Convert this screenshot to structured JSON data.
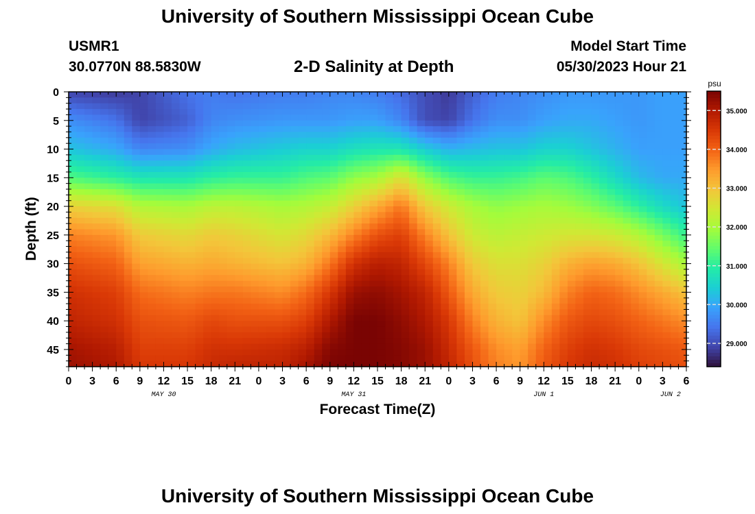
{
  "header": {
    "title": "University of Southern Mississippi Ocean Cube",
    "station": "USMR1",
    "coords": "30.0770N  88.5830W",
    "plot_title": "2-D Salinity at Depth",
    "model_start_label": "Model Start Time",
    "model_start_value": "05/30/2023 Hour 21"
  },
  "footer": {
    "title": "University of Southern Mississippi Ocean Cube"
  },
  "chart_data": {
    "type": "heatmap",
    "title": "2-D Salinity at Depth",
    "xlabel": "Forecast Time(Z)",
    "ylabel": "Depth (ft)",
    "x_hours_range": [
      0,
      78
    ],
    "x_ticks": [
      "0",
      "3",
      "6",
      "9",
      "12",
      "15",
      "18",
      "21",
      "0",
      "3",
      "6",
      "9",
      "12",
      "15",
      "18",
      "21",
      "0",
      "3",
      "6",
      "9",
      "12",
      "15",
      "18",
      "21",
      "0",
      "3",
      "6"
    ],
    "date_labels": [
      {
        "label": "MAY 30",
        "hour": 12
      },
      {
        "label": "MAY 31",
        "hour": 36
      },
      {
        "label": "JUN 1",
        "hour": 60
      },
      {
        "label": "JUN 2",
        "hour": 76
      }
    ],
    "ylim": [
      0,
      48
    ],
    "y_ticks": [
      0,
      5,
      10,
      15,
      20,
      25,
      30,
      35,
      40,
      45
    ],
    "colorbar": {
      "unit": "psu",
      "range": [
        28.4,
        35.5
      ],
      "ticks": [
        "29.000",
        "30.000",
        "31.000",
        "32.000",
        "33.000",
        "34.000",
        "35.000"
      ]
    },
    "colormap": [
      "#30123b",
      "#4145ab",
      "#4675ed",
      "#39a2fc",
      "#1bcfd4",
      "#24eca6",
      "#61fc6c",
      "#a4fc3b",
      "#d1e834",
      "#f3c63a",
      "#fe9b2d",
      "#f36315",
      "#d93806",
      "#b11901",
      "#7a0403"
    ],
    "depth_profile_hours": [
      0,
      6,
      9,
      15,
      18,
      21,
      27,
      30,
      33,
      36,
      39,
      42,
      45,
      48,
      51,
      54,
      57,
      60,
      63,
      66,
      69,
      72,
      75,
      78
    ],
    "salinity_profiles_psu": {
      "depths_ft": [
        0,
        5,
        10,
        15,
        20,
        25,
        30,
        35,
        40,
        45,
        48
      ],
      "values": [
        [
          28.9,
          29.7,
          30.3,
          31.3,
          32.8,
          33.7,
          34.2,
          34.6,
          34.8,
          35.1,
          35.2
        ],
        [
          28.8,
          29.4,
          30.0,
          31.0,
          32.6,
          33.5,
          34.0,
          34.4,
          34.6,
          34.9,
          35.0
        ],
        [
          28.9,
          28.9,
          29.6,
          30.8,
          32.1,
          32.9,
          33.4,
          33.9,
          34.2,
          34.4,
          34.5
        ],
        [
          29.4,
          29.2,
          29.7,
          30.8,
          32.0,
          32.7,
          33.2,
          33.7,
          34.1,
          34.4,
          34.5
        ],
        [
          29.5,
          29.6,
          30.0,
          31.0,
          32.2,
          32.9,
          33.3,
          33.8,
          34.3,
          34.6,
          34.7
        ],
        [
          29.4,
          29.7,
          30.2,
          31.1,
          32.2,
          32.8,
          33.2,
          33.8,
          34.2,
          34.6,
          34.8
        ],
        [
          29.5,
          29.8,
          30.4,
          31.1,
          32.0,
          32.5,
          33.0,
          33.6,
          34.2,
          34.7,
          34.8
        ],
        [
          29.5,
          29.8,
          30.5,
          31.3,
          32.1,
          32.7,
          33.2,
          33.9,
          34.4,
          34.9,
          35.1
        ],
        [
          29.6,
          29.8,
          30.5,
          31.4,
          32.3,
          33.1,
          33.8,
          34.5,
          35.0,
          35.4,
          35.5
        ],
        [
          29.6,
          29.9,
          30.7,
          31.8,
          32.8,
          33.7,
          34.6,
          35.2,
          35.5,
          35.5,
          35.5
        ],
        [
          29.5,
          29.9,
          30.8,
          32.0,
          33.3,
          34.2,
          34.9,
          35.3,
          35.5,
          35.5,
          35.5
        ],
        [
          29.3,
          29.6,
          30.8,
          32.6,
          33.8,
          34.4,
          34.8,
          35.1,
          35.3,
          35.4,
          35.4
        ],
        [
          29.0,
          29.0,
          30.4,
          31.8,
          32.9,
          33.7,
          34.3,
          34.8,
          35.0,
          35.2,
          35.2
        ],
        [
          28.8,
          28.9,
          30.1,
          31.3,
          32.4,
          33.0,
          33.7,
          34.1,
          34.5,
          34.7,
          34.8
        ],
        [
          29.2,
          29.4,
          30.2,
          31.1,
          32.0,
          32.4,
          32.9,
          33.3,
          33.7,
          34.1,
          34.2
        ],
        [
          29.5,
          29.7,
          30.3,
          31.1,
          31.8,
          32.2,
          32.6,
          32.9,
          33.2,
          33.6,
          33.7
        ],
        [
          29.6,
          29.7,
          30.3,
          31.2,
          31.9,
          32.3,
          32.6,
          32.8,
          33.0,
          33.4,
          33.5
        ],
        [
          29.7,
          29.9,
          30.5,
          31.4,
          32.0,
          32.4,
          32.8,
          33.1,
          33.6,
          34.0,
          34.1
        ],
        [
          29.8,
          30.0,
          30.5,
          31.3,
          31.9,
          32.5,
          33.2,
          33.7,
          34.1,
          34.4,
          34.5
        ],
        [
          29.8,
          30.0,
          30.3,
          31.0,
          31.7,
          32.5,
          33.4,
          34.0,
          34.3,
          34.6,
          34.7
        ],
        [
          29.8,
          29.9,
          30.1,
          30.6,
          31.4,
          32.4,
          33.3,
          33.9,
          34.2,
          34.5,
          34.6
        ],
        [
          29.8,
          29.8,
          29.9,
          30.2,
          31.0,
          32.1,
          33.0,
          33.6,
          34.0,
          34.3,
          34.4
        ],
        [
          29.9,
          29.9,
          29.9,
          30.0,
          30.6,
          31.6,
          32.5,
          33.3,
          33.8,
          34.2,
          34.3
        ],
        [
          29.9,
          29.9,
          29.9,
          30.0,
          30.3,
          31.1,
          32.0,
          33.0,
          33.6,
          34.1,
          34.2
        ]
      ]
    }
  }
}
